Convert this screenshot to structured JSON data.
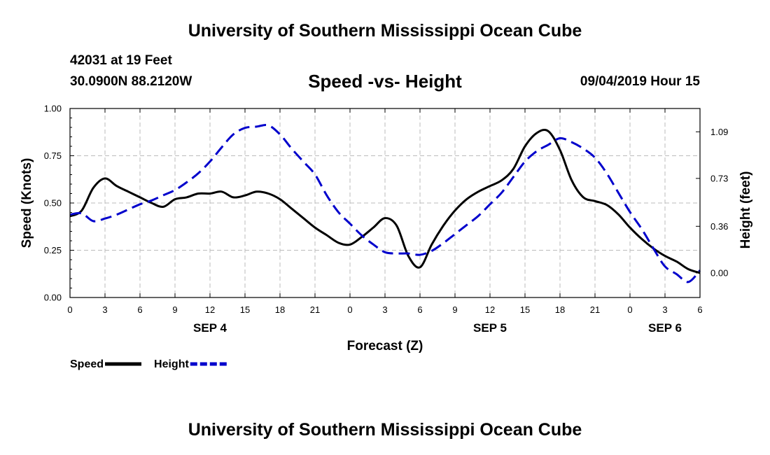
{
  "header": {
    "top_title": "University of Southern Mississippi Ocean Cube",
    "station": "42031 at 19 Feet",
    "coordinates": "30.0900N 88.2120W",
    "subtitle": "Speed -vs- Height",
    "datetime": "09/04/2019 Hour 15"
  },
  "footer": {
    "bottom_title": "University of Southern Mississippi Ocean Cube"
  },
  "chart_data": {
    "type": "line",
    "title": "Speed -vs- Height",
    "xlabel": "Forecast (Z)",
    "ylabel_left": "Speed (Knots)",
    "ylabel_right": "Height (feet)",
    "xlim_hours": [
      0,
      54
    ],
    "x_ticks": [
      {
        "h": 0,
        "label": "0"
      },
      {
        "h": 3,
        "label": "3"
      },
      {
        "h": 6,
        "label": "6"
      },
      {
        "h": 9,
        "label": "9"
      },
      {
        "h": 12,
        "label": "12"
      },
      {
        "h": 15,
        "label": "15"
      },
      {
        "h": 18,
        "label": "18"
      },
      {
        "h": 21,
        "label": "21"
      },
      {
        "h": 24,
        "label": "0"
      },
      {
        "h": 27,
        "label": "3"
      },
      {
        "h": 30,
        "label": "6"
      },
      {
        "h": 33,
        "label": "9"
      },
      {
        "h": 36,
        "label": "12"
      },
      {
        "h": 39,
        "label": "15"
      },
      {
        "h": 42,
        "label": "18"
      },
      {
        "h": 45,
        "label": "21"
      },
      {
        "h": 48,
        "label": "0"
      },
      {
        "h": 51,
        "label": "3"
      },
      {
        "h": 54,
        "label": "6"
      }
    ],
    "date_labels": [
      {
        "h": 12,
        "label": "SEP 4"
      },
      {
        "h": 36,
        "label": "SEP 5"
      },
      {
        "h": 51,
        "label": "SEP 6"
      }
    ],
    "left_axis": {
      "ylim": [
        0,
        1.0
      ],
      "ticks": [
        {
          "v": 0.0,
          "label": "0.00"
        },
        {
          "v": 0.25,
          "label": "0.25"
        },
        {
          "v": 0.5,
          "label": "0.50"
        },
        {
          "v": 0.75,
          "label": "0.75"
        },
        {
          "v": 1.0,
          "label": "1.00"
        }
      ]
    },
    "right_axis": {
      "ylim": [
        -0.19,
        1.27
      ],
      "ticks": [
        {
          "v": 0.0,
          "label": "0.00"
        },
        {
          "v": 0.36,
          "label": "0.36"
        },
        {
          "v": 0.73,
          "label": "0.73"
        },
        {
          "v": 1.09,
          "label": "1.09"
        }
      ]
    },
    "grid": true,
    "legend_position": "bottom-left",
    "series": [
      {
        "name": "Speed",
        "axis": "left",
        "color": "#000000",
        "style": "solid",
        "x": [
          0,
          1,
          2,
          3,
          4,
          5,
          6,
          7,
          8,
          9,
          10,
          11,
          12,
          13,
          14,
          15,
          16,
          17,
          18,
          19,
          20,
          21,
          22,
          23,
          24,
          25,
          26,
          27,
          28,
          29,
          30,
          31,
          32,
          33,
          34,
          35,
          36,
          37,
          38,
          39,
          40,
          41,
          42,
          43,
          44,
          45,
          46,
          47,
          48,
          49,
          50,
          51,
          52,
          53,
          54
        ],
        "values": [
          0.43,
          0.46,
          0.58,
          0.63,
          0.59,
          0.56,
          0.53,
          0.5,
          0.48,
          0.52,
          0.53,
          0.55,
          0.55,
          0.56,
          0.53,
          0.54,
          0.56,
          0.55,
          0.52,
          0.47,
          0.42,
          0.37,
          0.33,
          0.29,
          0.28,
          0.32,
          0.37,
          0.42,
          0.38,
          0.22,
          0.16,
          0.28,
          0.38,
          0.46,
          0.52,
          0.56,
          0.59,
          0.62,
          0.68,
          0.8,
          0.87,
          0.88,
          0.78,
          0.62,
          0.53,
          0.51,
          0.49,
          0.44,
          0.37,
          0.31,
          0.26,
          0.22,
          0.19,
          0.15,
          0.13
        ]
      },
      {
        "name": "Height",
        "axis": "right",
        "color": "#0000cc",
        "style": "dashed",
        "x": [
          0,
          1,
          2,
          3,
          4,
          5,
          6,
          7,
          8,
          9,
          10,
          11,
          12,
          13,
          14,
          15,
          16,
          17,
          18,
          19,
          20,
          21,
          22,
          23,
          24,
          25,
          26,
          27,
          28,
          29,
          30,
          31,
          32,
          33,
          34,
          35,
          36,
          37,
          38,
          39,
          40,
          41,
          42,
          43,
          44,
          45,
          46,
          47,
          48,
          49,
          50,
          51,
          52,
          53,
          54
        ],
        "values": [
          0.45,
          0.46,
          0.4,
          0.42,
          0.45,
          0.49,
          0.53,
          0.56,
          0.6,
          0.64,
          0.7,
          0.77,
          0.86,
          0.97,
          1.07,
          1.12,
          1.13,
          1.14,
          1.07,
          0.96,
          0.86,
          0.76,
          0.6,
          0.47,
          0.38,
          0.29,
          0.22,
          0.16,
          0.15,
          0.15,
          0.14,
          0.17,
          0.23,
          0.3,
          0.37,
          0.44,
          0.53,
          0.62,
          0.74,
          0.86,
          0.94,
          0.99,
          1.04,
          1.01,
          0.96,
          0.89,
          0.77,
          0.62,
          0.47,
          0.34,
          0.19,
          0.05,
          -0.01,
          -0.07,
          0.02
        ]
      }
    ]
  }
}
